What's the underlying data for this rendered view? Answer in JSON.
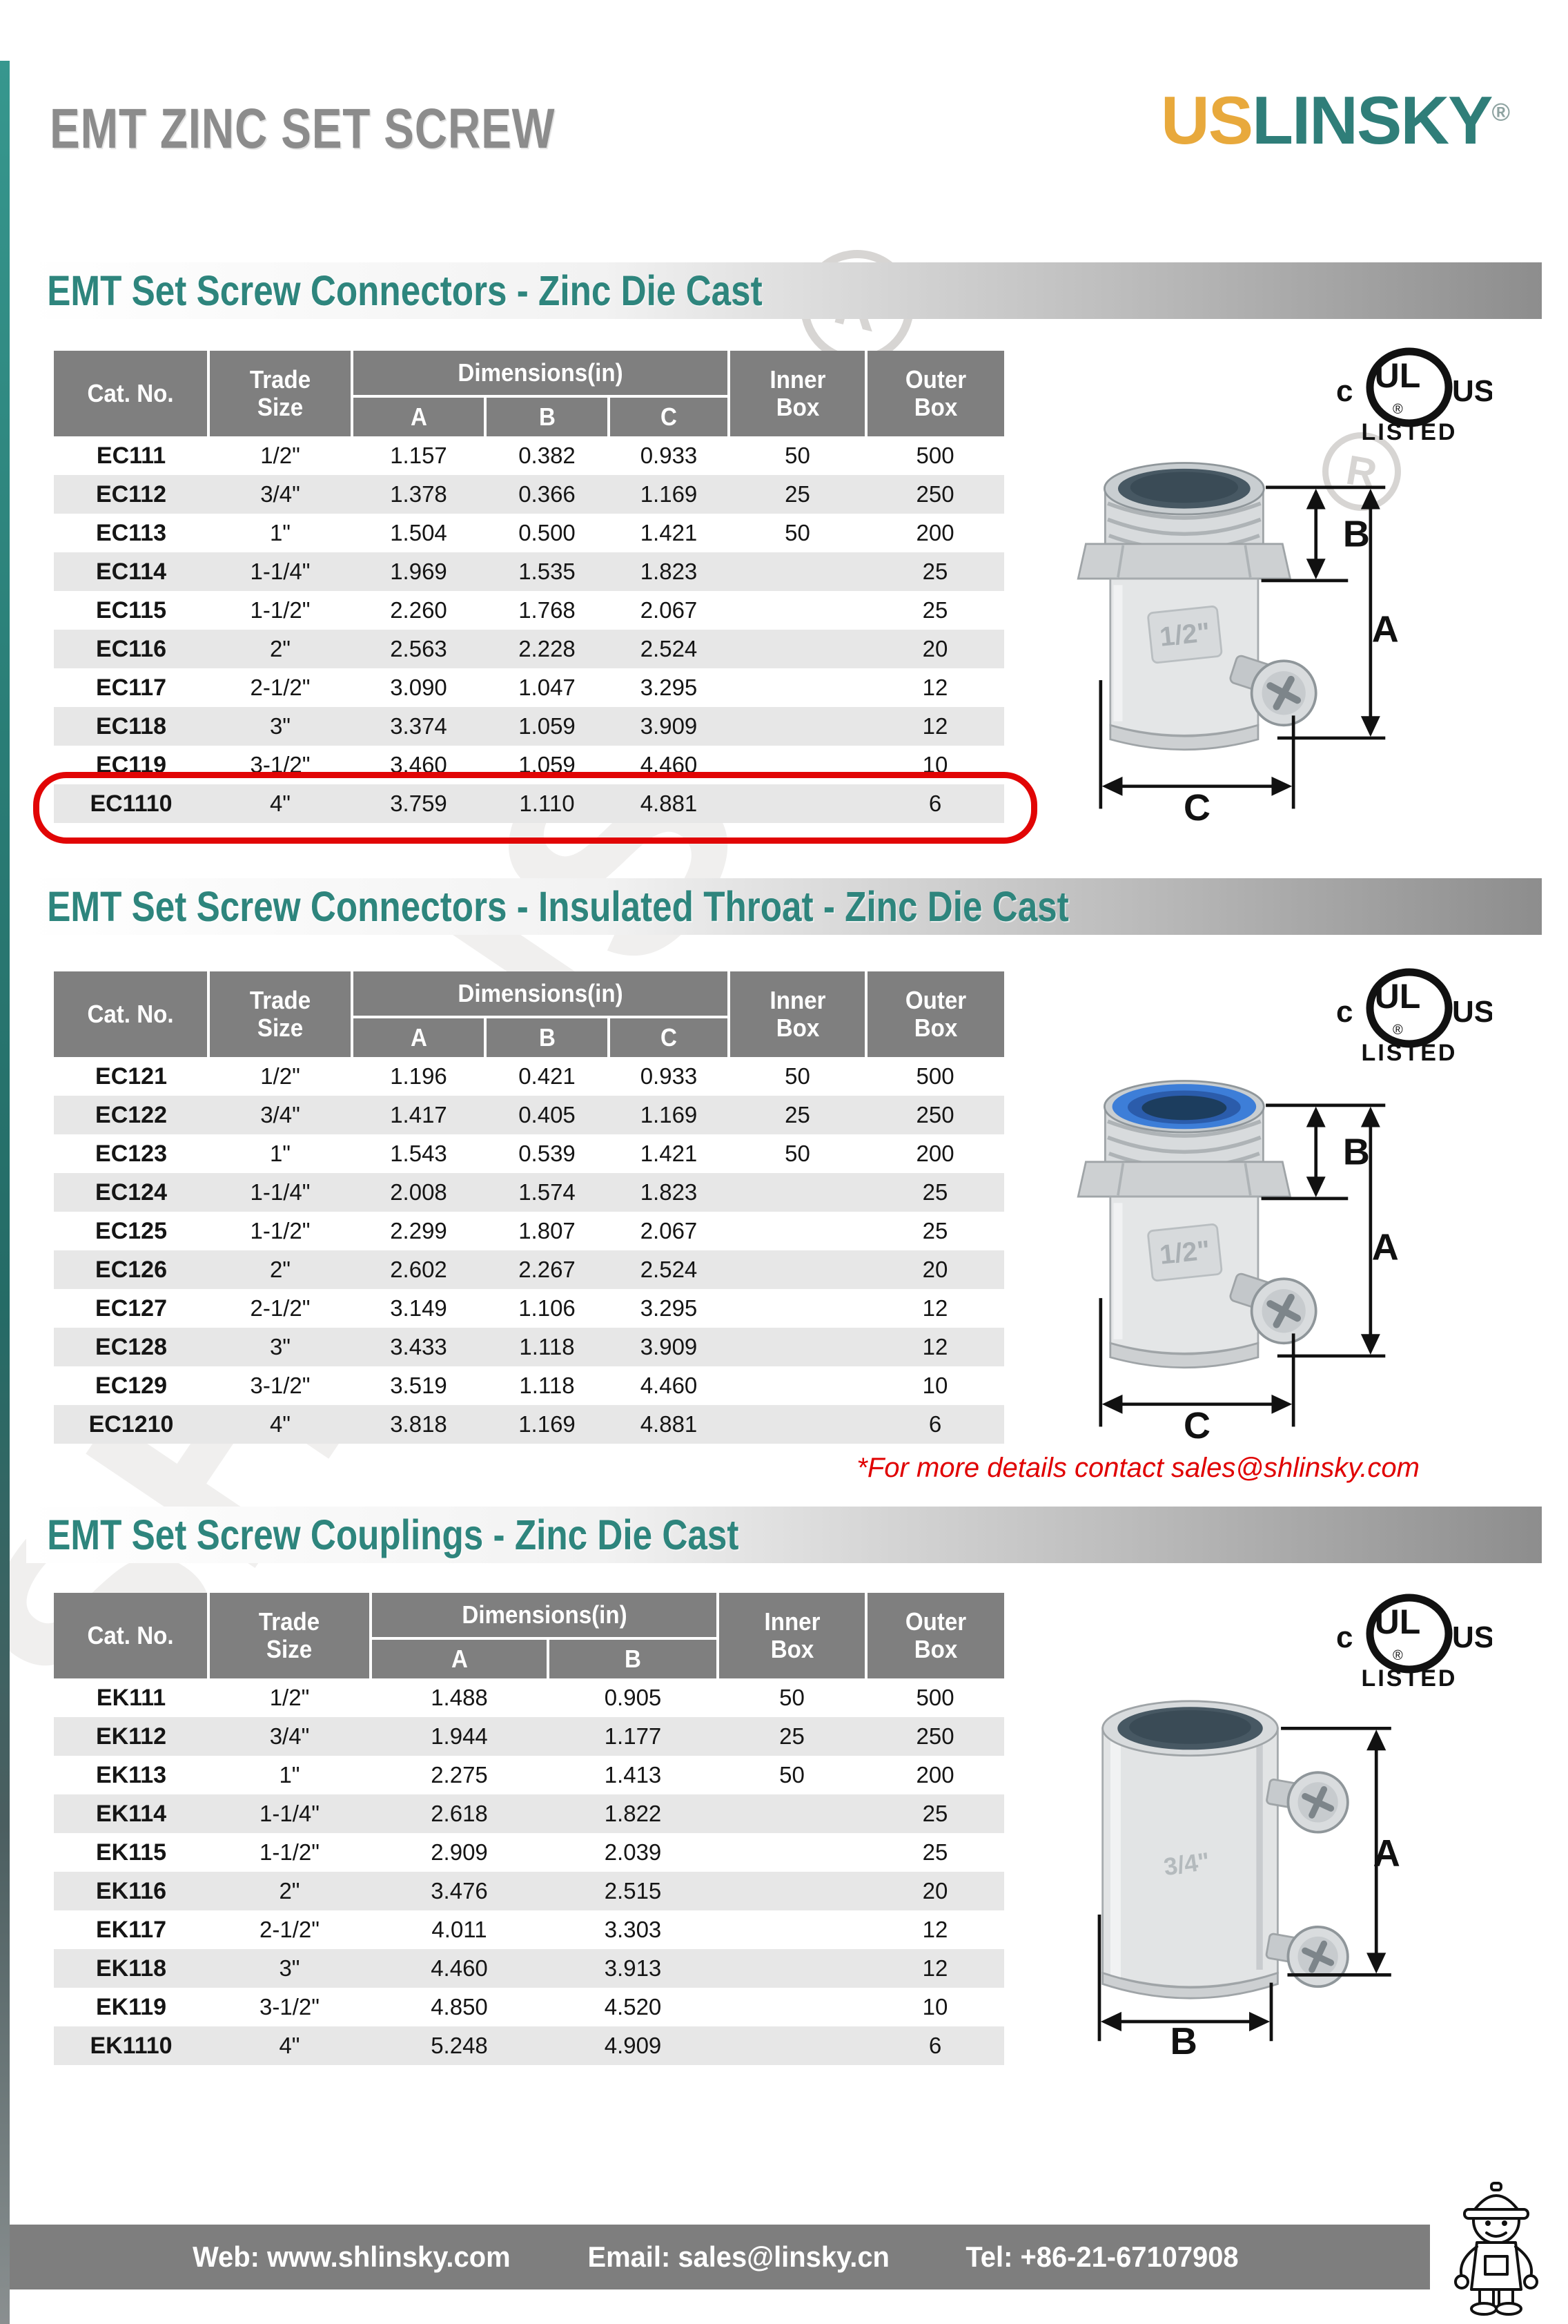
{
  "page": {
    "title": "EMT ZINC SET SCREW",
    "logo": {
      "part1": "US",
      "part2": "LINSKY",
      "registered": "®"
    },
    "watermark": "SHLINSKY",
    "registered_mark": "R",
    "note": "*For more details contact sales@shlinsky.com",
    "footer": {
      "web": "Web: www.shlinsky.com",
      "email": "Email: sales@linsky.cn",
      "tel": "Tel: +86-21-67107908"
    }
  },
  "ul_mark": {
    "c": "c",
    "ul": "UL",
    "us": "US",
    "listed": "LISTED",
    "registered": "®"
  },
  "sections": [
    {
      "title": "EMT Set Screw Connectors - Zinc Die Cast",
      "header": {
        "cat": "Cat. No.",
        "trade": [
          "Trade",
          "Size"
        ],
        "dims": "Dimensions(in)",
        "cols": [
          "A",
          "B",
          "C"
        ],
        "inner": [
          "Inner",
          "Box"
        ],
        "outer": [
          "Outer",
          "Box"
        ]
      },
      "rows": [
        [
          "EC111",
          "1/2\"",
          "1.157",
          "0.382",
          "0.933",
          "50",
          "500"
        ],
        [
          "EC112",
          "3/4\"",
          "1.378",
          "0.366",
          "1.169",
          "25",
          "250"
        ],
        [
          "EC113",
          "1\"",
          "1.504",
          "0.500",
          "1.421",
          "50",
          "200"
        ],
        [
          "EC114",
          "1-1/4\"",
          "1.969",
          "1.535",
          "1.823",
          "",
          "25"
        ],
        [
          "EC115",
          "1-1/2\"",
          "2.260",
          "1.768",
          "2.067",
          "",
          "25"
        ],
        [
          "EC116",
          "2\"",
          "2.563",
          "2.228",
          "2.524",
          "",
          "20"
        ],
        [
          "EC117",
          "2-1/2\"",
          "3.090",
          "1.047",
          "3.295",
          "",
          "12"
        ],
        [
          "EC118",
          "3\"",
          "3.374",
          "1.059",
          "3.909",
          "",
          "12"
        ],
        [
          "EC119",
          "3-1/2\"",
          "3.460",
          "1.059",
          "4.460",
          "",
          "10"
        ],
        [
          "EC1110",
          "4\"",
          "3.759",
          "1.110",
          "4.881",
          "",
          "6"
        ]
      ],
      "highlighted_row": "EC1110",
      "diagram": {
        "size_label": "1/2\"",
        "labels": {
          "a": "A",
          "b": "B",
          "c": "C"
        }
      }
    },
    {
      "title": "EMT Set Screw Connectors - Insulated Throat - Zinc Die Cast",
      "header": {
        "cat": "Cat. No.",
        "trade": [
          "Trade",
          "Size"
        ],
        "dims": "Dimensions(in)",
        "cols": [
          "A",
          "B",
          "C"
        ],
        "inner": [
          "Inner",
          "Box"
        ],
        "outer": [
          "Outer",
          "Box"
        ]
      },
      "rows": [
        [
          "EC121",
          "1/2\"",
          "1.196",
          "0.421",
          "0.933",
          "50",
          "500"
        ],
        [
          "EC122",
          "3/4\"",
          "1.417",
          "0.405",
          "1.169",
          "25",
          "250"
        ],
        [
          "EC123",
          "1\"",
          "1.543",
          "0.539",
          "1.421",
          "50",
          "200"
        ],
        [
          "EC124",
          "1-1/4\"",
          "2.008",
          "1.574",
          "1.823",
          "",
          "25"
        ],
        [
          "EC125",
          "1-1/2\"",
          "2.299",
          "1.807",
          "2.067",
          "",
          "25"
        ],
        [
          "EC126",
          "2\"",
          "2.602",
          "2.267",
          "2.524",
          "",
          "20"
        ],
        [
          "EC127",
          "2-1/2\"",
          "3.149",
          "1.106",
          "3.295",
          "",
          "12"
        ],
        [
          "EC128",
          "3\"",
          "3.433",
          "1.118",
          "3.909",
          "",
          "12"
        ],
        [
          "EC129",
          "3-1/2\"",
          "3.519",
          "1.118",
          "4.460",
          "",
          "10"
        ],
        [
          "EC1210",
          "4\"",
          "3.818",
          "1.169",
          "4.881",
          "",
          "6"
        ]
      ],
      "diagram": {
        "size_label": "1/2\"",
        "labels": {
          "a": "A",
          "b": "B",
          "c": "C"
        }
      }
    },
    {
      "title": "EMT Set Screw Couplings - Zinc Die Cast",
      "header": {
        "cat": "Cat. No.",
        "trade": [
          "Trade",
          "Size"
        ],
        "dims": "Dimensions(in)",
        "cols": [
          "A",
          "B"
        ],
        "inner": [
          "Inner",
          "Box"
        ],
        "outer": [
          "Outer",
          "Box"
        ]
      },
      "rows": [
        [
          "EK111",
          "1/2\"",
          "1.488",
          "0.905",
          "50",
          "500"
        ],
        [
          "EK112",
          "3/4\"",
          "1.944",
          "1.177",
          "25",
          "250"
        ],
        [
          "EK113",
          "1\"",
          "2.275",
          "1.413",
          "50",
          "200"
        ],
        [
          "EK114",
          "1-1/4\"",
          "2.618",
          "1.822",
          "",
          "25"
        ],
        [
          "EK115",
          "1-1/2\"",
          "2.909",
          "2.039",
          "",
          "25"
        ],
        [
          "EK116",
          "2\"",
          "3.476",
          "2.515",
          "",
          "20"
        ],
        [
          "EK117",
          "2-1/2\"",
          "4.011",
          "3.303",
          "",
          "12"
        ],
        [
          "EK118",
          "3\"",
          "4.460",
          "3.913",
          "",
          "12"
        ],
        [
          "EK119",
          "3-1/2\"",
          "4.850",
          "4.520",
          "",
          "10"
        ],
        [
          "EK1110",
          "4\"",
          "5.248",
          "4.909",
          "",
          "6"
        ]
      ],
      "diagram": {
        "size_label": "3/4\"",
        "labels": {
          "a": "A",
          "b": "B"
        }
      }
    }
  ]
}
